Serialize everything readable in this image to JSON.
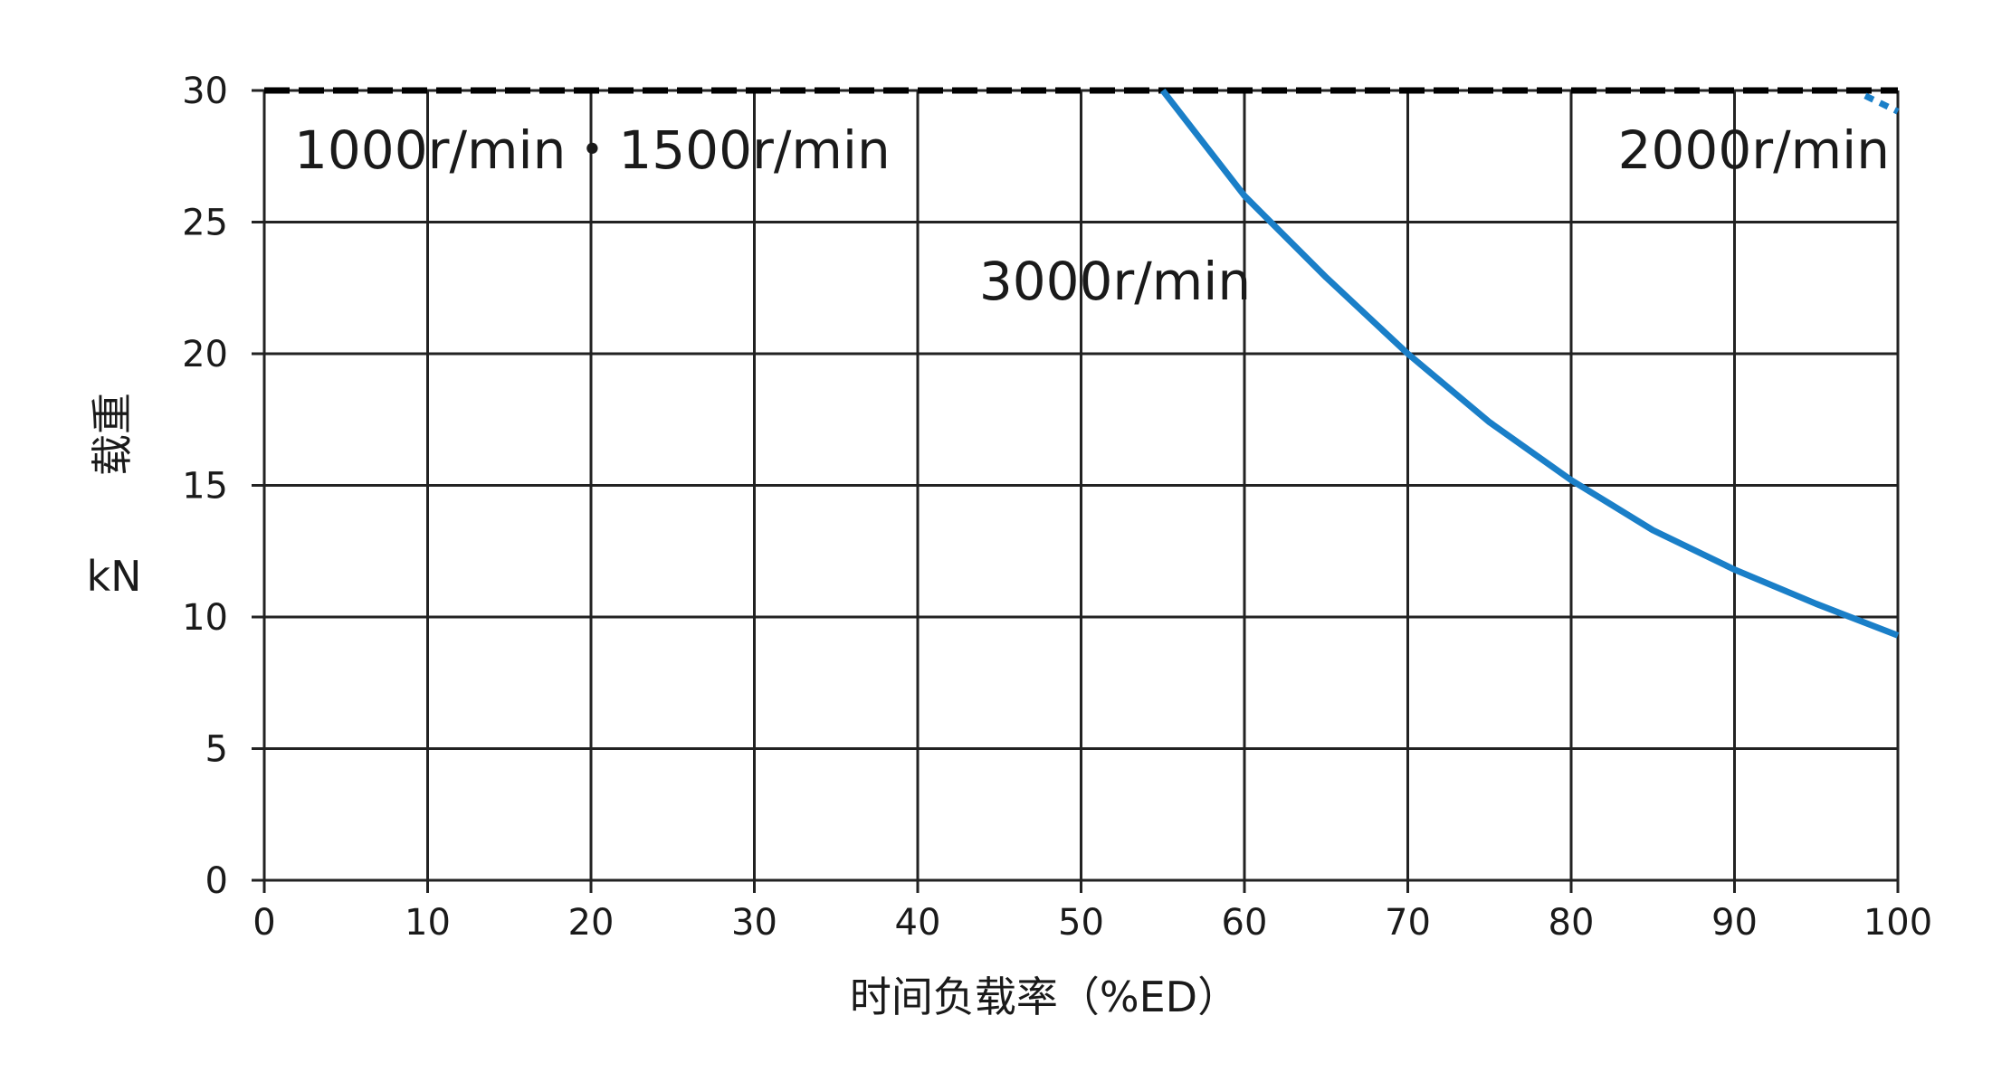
{
  "chart_data": {
    "type": "line",
    "xlabel": "时间负载率（%ED）",
    "ylabel_top": "载重",
    "ylabel_unit": "kN",
    "xlim": [
      0,
      100
    ],
    "ylim": [
      0,
      30
    ],
    "xticks": [
      0,
      10,
      20,
      30,
      40,
      50,
      60,
      70,
      80,
      90,
      100
    ],
    "yticks": [
      0,
      5,
      10,
      15,
      20,
      25,
      30
    ],
    "grid": true,
    "series": [
      {
        "name": "1000r/min・1500r/min",
        "style": "dashed",
        "color": "#000000",
        "x": [
          0,
          100
        ],
        "y": [
          30,
          30
        ]
      },
      {
        "name": "2000r/min",
        "style": "dashed",
        "color": "#1a7fc8",
        "x": [
          98,
          100
        ],
        "y": [
          29.8,
          29.2
        ]
      },
      {
        "name": "3000r/min",
        "style": "solid",
        "color": "#1a7fc8",
        "x": [
          55,
          60,
          65,
          70,
          75,
          80,
          85,
          90,
          95,
          100
        ],
        "y": [
          30,
          26,
          22.9,
          20,
          17.4,
          15.2,
          13.3,
          11.8,
          10.5,
          9.3
        ]
      }
    ],
    "annotations": [
      {
        "text": "1000r/min・1500r/min",
        "anchor": "top-left"
      },
      {
        "text": "2000r/min",
        "anchor": "top-right"
      },
      {
        "text": "3000r/min",
        "anchor": "center"
      }
    ]
  }
}
